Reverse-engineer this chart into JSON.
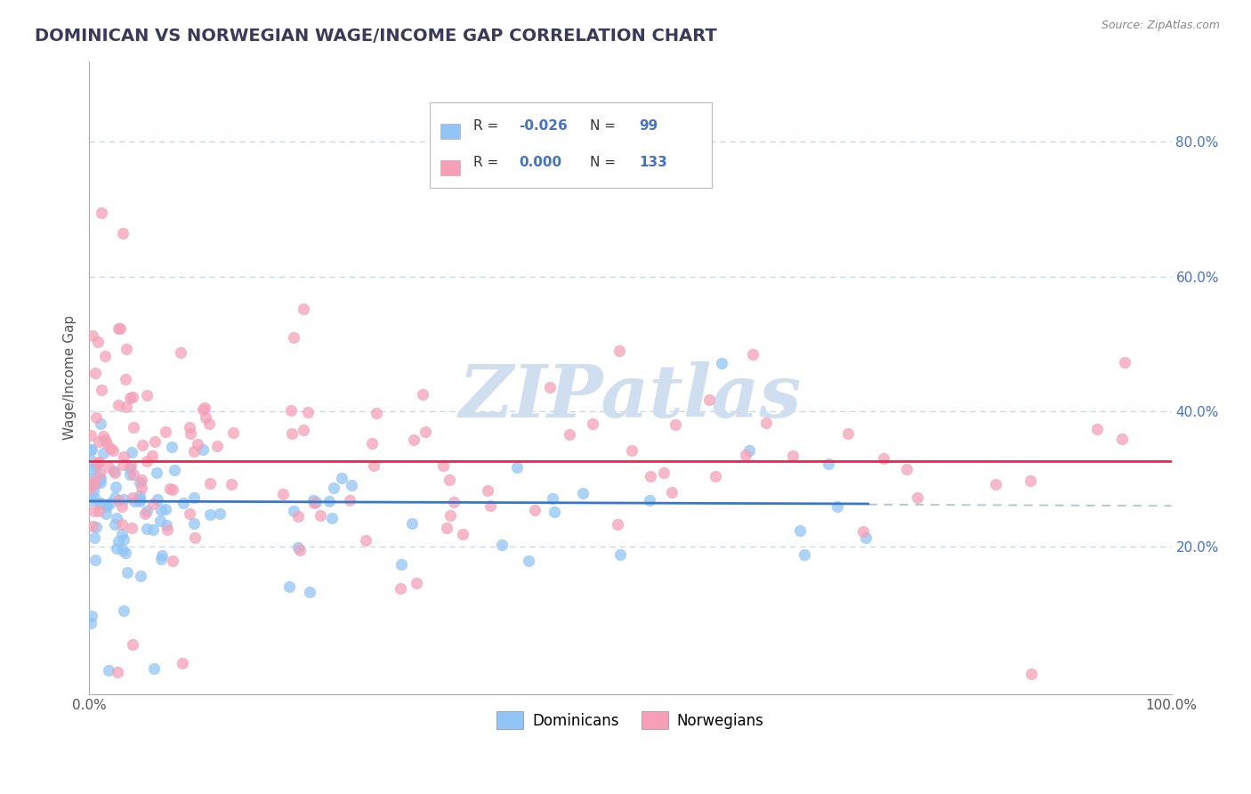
{
  "title": "DOMINICAN VS NORWEGIAN WAGE/INCOME GAP CORRELATION CHART",
  "source": "Source: ZipAtlas.com",
  "ylabel": "Wage/Income Gap",
  "ytick_labels": [
    "20.0%",
    "40.0%",
    "60.0%",
    "80.0%"
  ],
  "ytick_values": [
    0.2,
    0.4,
    0.6,
    0.8
  ],
  "xlim": [
    0.0,
    1.0
  ],
  "ylim": [
    -0.02,
    0.92
  ],
  "color_dominican": "#92c5f5",
  "color_norwegian": "#f5a0b8",
  "color_trend_dominican": "#3878c8",
  "color_trend_norwegian": "#e8274b",
  "color_dashed": "#b8c4d4",
  "background_color": "#ffffff",
  "title_color": "#3a3a5a",
  "title_fontsize": 14,
  "watermark_color": "#d0dff0",
  "source_color": "#888888"
}
